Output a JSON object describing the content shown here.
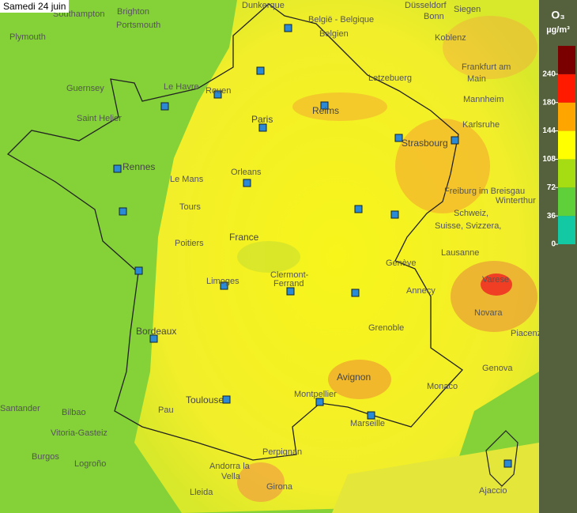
{
  "date": "Samedi 24 juin",
  "legend": {
    "title": "O₃",
    "unit": "µg/m³",
    "ticks": [
      0,
      36,
      72,
      108,
      144,
      180,
      240
    ],
    "colors": [
      "#12c9a4",
      "#5fd03a",
      "#a6dc12",
      "#ffff00",
      "#ffa500",
      "#ff1a00",
      "#7a0000"
    ]
  },
  "places": [
    "Southampton",
    "Brighton",
    "Dunkerque",
    "Plymouth",
    "Portsmouth",
    "Düsseldorf",
    "Bonn",
    "Siegen",
    "België - Belgique",
    "Belgien",
    "Koblenz",
    "Frankfurt am",
    "Main",
    "Guernsey",
    "Le Havre",
    "Rouen",
    "Letzebuerg",
    "Saint Helier",
    "Reims",
    "Mannheim",
    "Paris",
    "Karlsruhe",
    "Strasbourg",
    "Rennes",
    "Le Mans",
    "Orleans",
    "Freiburg im Breisgau",
    "Tours",
    "Winterthur",
    "Schweiz,",
    "Suisse, Svizzera,",
    "Poitiers",
    "France",
    "Lausanne",
    "Genève",
    "Limoges",
    "Clermont-",
    "Ferrand",
    "Annecy",
    "Varese",
    "Novara",
    "Bordeaux",
    "Grenoble",
    "Piacenza",
    "Genova",
    "Avignon",
    "Monaco",
    "Toulouse",
    "Montpellier",
    "Marseille",
    "Santander",
    "Bilbao",
    "Pau",
    "Vitoria-Gasteiz",
    "Burgos",
    "Logroño",
    "Andorra la",
    "Vella",
    "Perpignan",
    "Girona",
    "Ajaccio",
    "Lleida"
  ]
}
